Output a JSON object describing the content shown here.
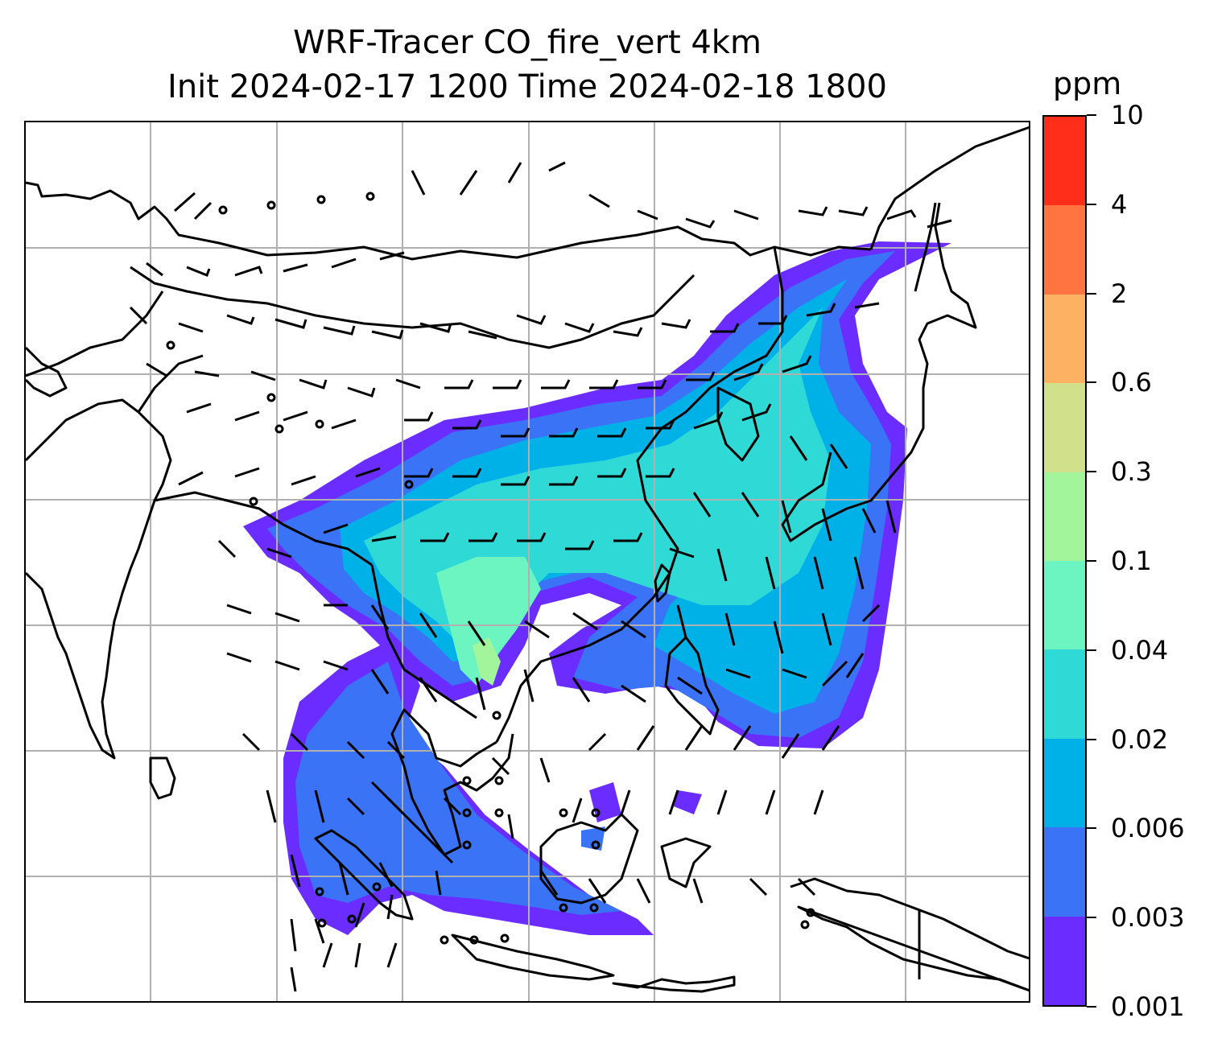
{
  "title": {
    "line1": "WRF-Tracer CO_fire_vert 4km",
    "line2": "Init 2024-02-17 1200 Time 2024-02-18 1800"
  },
  "colorbar": {
    "unit": "ppm",
    "ticks": [
      "0.001",
      "0.003",
      "0.006",
      "0.02",
      "0.04",
      "0.1",
      "0.3",
      "0.6",
      "2",
      "4",
      "10"
    ],
    "colors": [
      "#6a2cff",
      "#3a73f6",
      "#00b1e8",
      "#2fdad6",
      "#6cf5c0",
      "#a2f59a",
      "#d1e08a",
      "#fdb263",
      "#ff7440",
      "#ff2e1a"
    ]
  },
  "map": {
    "coastline_color": "#000000",
    "gridline_color": "#b0b0b0",
    "layers": [
      "coastlines",
      "country borders",
      "gridlines",
      "wind barbs",
      "CO tracer shading"
    ]
  }
}
